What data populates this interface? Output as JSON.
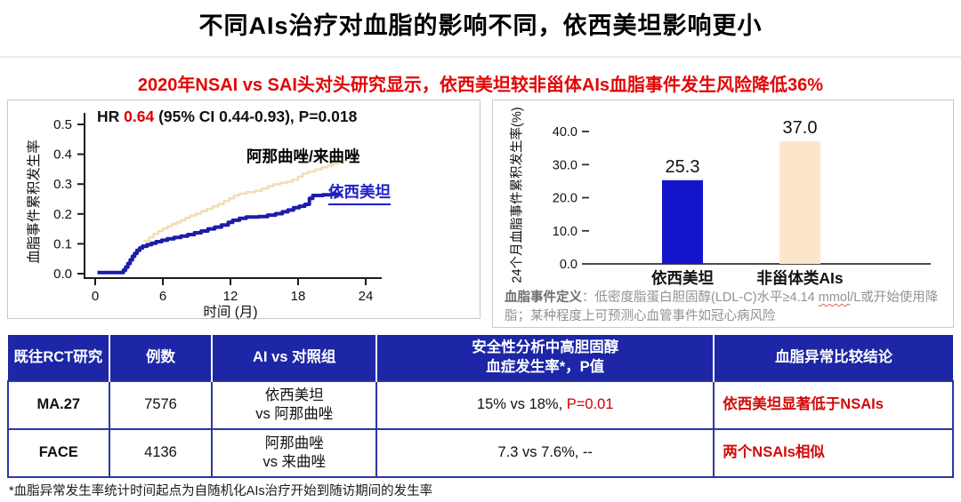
{
  "slide": {
    "title": "不同AIs治疗对血脂的影响不同，依西美坦影响更小",
    "subtitle": "2020年NSAI vs SAI头对头研究显示，依西美坦较非甾体AIs血脂事件发生风险降低36%"
  },
  "chart_data": [
    {
      "type": "line",
      "subtype": "cumulative-incidence-step-curve",
      "annotation": {
        "prefix": "HR ",
        "value": "0.64",
        "suffix": " (95% CI 0.44-0.93), P=0.018"
      },
      "xlabel": "时间 (月)",
      "ylabel": "血脂事件累积发生率",
      "xlim": [
        0,
        24
      ],
      "ylim": [
        0,
        0.5
      ],
      "xticks": [
        0,
        6,
        12,
        18,
        24
      ],
      "yticks": [
        0,
        0.1,
        0.2,
        0.3,
        0.4,
        0.5
      ],
      "grid": false,
      "series": [
        {
          "name": "阿那曲唑/来曲唑",
          "color": "#f2ddb5",
          "label_color": "#000000",
          "points": [
            [
              4.3,
              0.11
            ],
            [
              4.8,
              0.122
            ],
            [
              5.2,
              0.133
            ],
            [
              5.6,
              0.143
            ],
            [
              6.0,
              0.151
            ],
            [
              6.4,
              0.158
            ],
            [
              6.8,
              0.166
            ],
            [
              7.2,
              0.172
            ],
            [
              7.6,
              0.179
            ],
            [
              8.0,
              0.187
            ],
            [
              8.4,
              0.194
            ],
            [
              8.9,
              0.201
            ],
            [
              9.4,
              0.209
            ],
            [
              9.9,
              0.217
            ],
            [
              10.4,
              0.225
            ],
            [
              10.9,
              0.233
            ],
            [
              11.4,
              0.243
            ],
            [
              11.9,
              0.252
            ],
            [
              12.3,
              0.262
            ],
            [
              12.8,
              0.268
            ],
            [
              13.4,
              0.273
            ],
            [
              14.2,
              0.278
            ],
            [
              14.8,
              0.285
            ],
            [
              15.3,
              0.293
            ],
            [
              15.8,
              0.299
            ],
            [
              16.4,
              0.304
            ],
            [
              17.0,
              0.308
            ],
            [
              17.5,
              0.315
            ],
            [
              18.0,
              0.325
            ],
            [
              18.4,
              0.335
            ],
            [
              18.9,
              0.342
            ],
            [
              19.5,
              0.349
            ],
            [
              20.1,
              0.356
            ],
            [
              20.6,
              0.362
            ],
            [
              21.1,
              0.369
            ],
            [
              21.6,
              0.373
            ],
            [
              22.0,
              0.376
            ]
          ]
        },
        {
          "name": "依西美坦",
          "color": "#1c1caa",
          "label_color": "#2020c8",
          "points": [
            [
              0.2,
              0.004
            ],
            [
              2.3,
              0.004
            ],
            [
              2.5,
              0.012
            ],
            [
              2.7,
              0.022
            ],
            [
              2.9,
              0.034
            ],
            [
              3.1,
              0.046
            ],
            [
              3.3,
              0.058
            ],
            [
              3.5,
              0.068
            ],
            [
              3.7,
              0.078
            ],
            [
              3.95,
              0.086
            ],
            [
              4.2,
              0.092
            ],
            [
              4.6,
              0.097
            ],
            [
              5.0,
              0.102
            ],
            [
              5.4,
              0.107
            ],
            [
              5.9,
              0.112
            ],
            [
              6.4,
              0.117
            ],
            [
              7.0,
              0.121
            ],
            [
              7.6,
              0.126
            ],
            [
              8.2,
              0.131
            ],
            [
              8.8,
              0.137
            ],
            [
              9.4,
              0.143
            ],
            [
              10.0,
              0.15
            ],
            [
              10.6,
              0.156
            ],
            [
              11.2,
              0.163
            ],
            [
              11.8,
              0.172
            ],
            [
              12.2,
              0.179
            ],
            [
              12.8,
              0.185
            ],
            [
              13.4,
              0.19
            ],
            [
              14.5,
              0.191
            ],
            [
              15.3,
              0.196
            ],
            [
              16.0,
              0.201
            ],
            [
              16.6,
              0.207
            ],
            [
              17.1,
              0.213
            ],
            [
              17.6,
              0.221
            ],
            [
              18.1,
              0.226
            ],
            [
              18.6,
              0.232
            ],
            [
              19.0,
              0.252
            ],
            [
              19.3,
              0.262
            ],
            [
              20.2,
              0.264
            ],
            [
              21.0,
              0.266
            ],
            [
              21.8,
              0.268
            ]
          ]
        }
      ]
    },
    {
      "type": "bar",
      "categories": [
        "依西美坦",
        "非甾体类AIs"
      ],
      "values": [
        25.3,
        37.0
      ],
      "value_labels": [
        "25.3",
        "37.0"
      ],
      "bar_colors": [
        "#1414cc",
        "#fbe6c9"
      ],
      "ylabel": "24个月血脂事件累积发生率(%)",
      "ylim": [
        0,
        40
      ],
      "yticks": [
        0,
        10,
        20,
        30,
        40
      ],
      "grid": false,
      "legend": "none"
    }
  ],
  "definition": {
    "label": "血脂事件定义",
    "colon": "：",
    "body_pre": "低密度脂蛋白胆固醇(LDL-C)水平≥4.14 ",
    "unit": "mmol",
    "body_post": "/L或开始使用降脂；某种程度上可预测心血管事件如冠心病风险"
  },
  "table": {
    "headers": [
      "既往RCT研究",
      "例数",
      "AI vs 对照组",
      "安全性分析中高胆固醇\n血症发生率*，P值",
      "血脂异常比较结论"
    ],
    "rows": [
      {
        "study": "MA.27",
        "n": "7576",
        "comparison": "依西美坦\nvs 阿那曲唑",
        "rate": "15% vs 18%, ",
        "rate_red": "P=0.01",
        "conclusion": "依西美坦显著低于NSAIs"
      },
      {
        "study": "FACE",
        "n": "4136",
        "comparison": "阿那曲唑\nvs 来曲唑",
        "rate": "7.3 vs 7.6%, --",
        "rate_red": "",
        "conclusion": "两个NSAIs相似"
      }
    ]
  },
  "footnote": "*血脂异常发生率统计时间起点为自随机化AIs治疗开始到随访期间的发生率",
  "colors": {
    "accent_red": "#d40000",
    "subtitle_red": "#e30505",
    "table_header_blue": "#1c26a6",
    "exemestane_blue": "#1414cc",
    "nsai_beige": "#fbe6c9"
  }
}
